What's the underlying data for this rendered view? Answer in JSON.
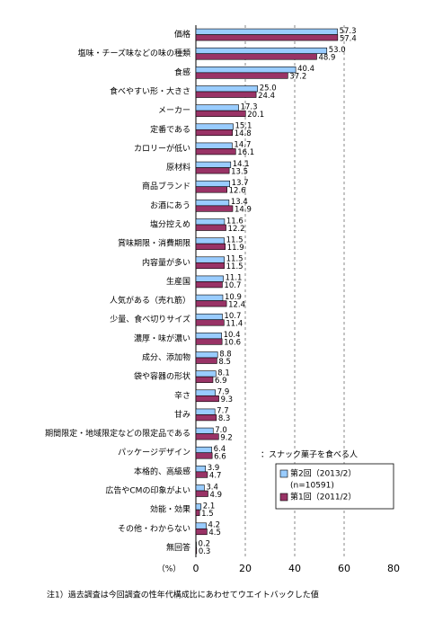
{
  "chart_data": {
    "type": "barh",
    "categories": [
      "価格",
      "塩味・チーズ味などの味の種類",
      "食感",
      "食べやすい形・大きさ",
      "メーカー",
      "定番である",
      "カロリーが低い",
      "原材料",
      "商品ブランド",
      "お酒にあう",
      "塩分控えめ",
      "賞味期限・消費期限",
      "内容量が多い",
      "生産国",
      "人気がある（売れ筋）",
      "少量、食べ切りサイズ",
      "濃厚・味が濃い",
      "成分、添加物",
      "袋や容器の形状",
      "辛さ",
      "甘み",
      "期間限定・地域限定などの限定品である",
      "パッケージデザイン",
      "本格的、高級感",
      "広告やCMの印象がよい",
      "効能・効果",
      "その他・わからない",
      "無回答"
    ],
    "series": [
      {
        "name": "第2回（2013/2）",
        "color": "#99ccff",
        "values": [
          57.3,
          53.0,
          40.4,
          25.0,
          17.3,
          15.1,
          14.7,
          14.1,
          13.7,
          13.4,
          11.6,
          11.5,
          11.5,
          11.1,
          10.9,
          10.7,
          10.4,
          8.8,
          8.1,
          7.9,
          7.7,
          7.0,
          6.4,
          3.9,
          3.4,
          2.1,
          4.2,
          0.2
        ],
        "value_labels": [
          "57.3",
          "53.0",
          "40.4",
          "25.0",
          "17.3",
          "15.1",
          "14.7",
          "14.1",
          "13.7",
          "13.4",
          "11.6",
          "11.5",
          "11.5",
          "11.1",
          "10.9",
          "10.7",
          "10.4",
          "8.8",
          "8.1",
          "7.9",
          "7.7",
          "7.0",
          "6.4",
          "3.9",
          "3.4",
          "2.1",
          "4.2",
          "0.2"
        ]
      },
      {
        "name": "第1回（2011/2）",
        "color": "#993366",
        "values": [
          57.4,
          48.9,
          37.2,
          24.4,
          20.1,
          14.8,
          16.1,
          13.5,
          12.6,
          14.9,
          12.2,
          11.9,
          11.5,
          10.7,
          12.4,
          11.4,
          10.6,
          8.5,
          6.9,
          9.3,
          8.3,
          9.2,
          6.6,
          4.7,
          4.9,
          1.5,
          4.5,
          0.3
        ],
        "value_labels": [
          "57.4",
          "48.9",
          "37.2",
          "24.4",
          "20.1",
          "14.8",
          "16.1",
          "13.5",
          "12.6",
          "14.9",
          "12.2",
          "11.9",
          "11.5",
          "10.7",
          "12.4",
          "11.4",
          "10.6",
          "8.5",
          "6.9",
          "9.3",
          "8.3",
          "9.2",
          "6.6",
          "4.7",
          "4.9",
          "1.5",
          "4.5",
          "0.3"
        ]
      }
    ],
    "xlim": [
      0,
      80
    ],
    "xticks": [
      0,
      20,
      40,
      60,
      80
    ],
    "grid": true,
    "x_label": "（%）",
    "legend_title": "：スナック菓子を食べる人",
    "legend_note": "(n=10591)",
    "legend_position": "lower right",
    "note": "注1）過去調査は今回調査の性年代構成比にあわせてウエイトバックした値"
  }
}
